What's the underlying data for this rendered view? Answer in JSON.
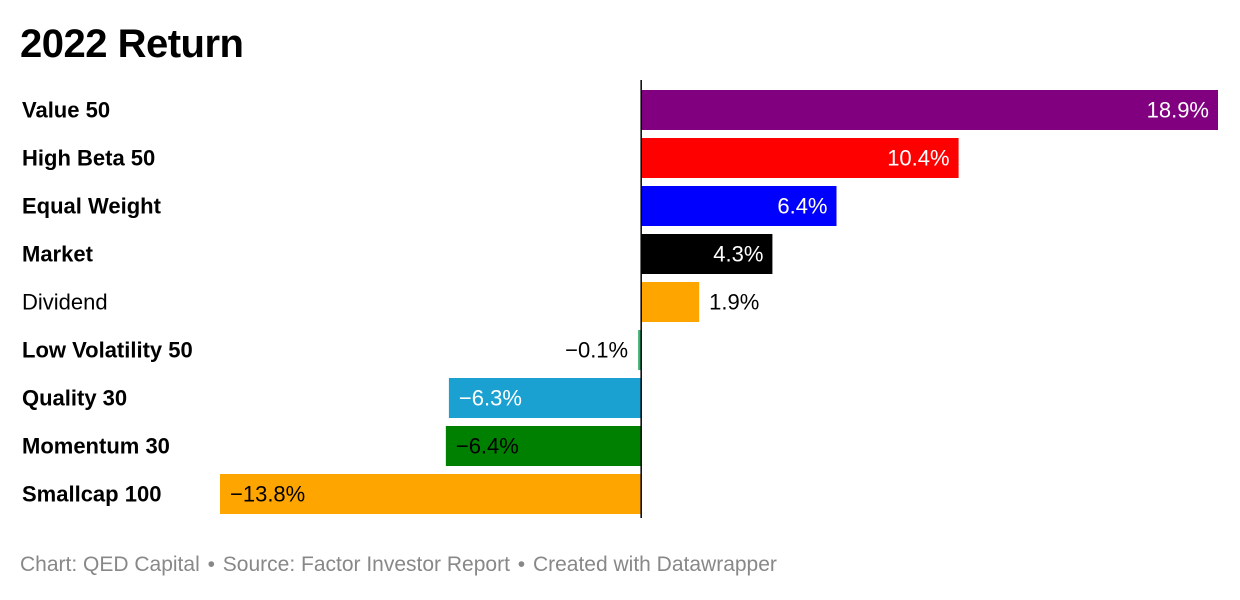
{
  "title": "2022 Return",
  "footer": {
    "chart": "Chart: QED Capital",
    "source": "Source: Factor Investor Report",
    "tool": "Created with Datawrapper",
    "separator": "•"
  },
  "chart_data": {
    "type": "bar",
    "orientation": "horizontal",
    "title": "2022 Return",
    "unit": "%",
    "xlim": [
      -13.8,
      18.9
    ],
    "grid": false,
    "legend": "none",
    "categories": [
      "Value 50",
      "High Beta 50",
      "Equal Weight",
      "Market",
      "Dividend",
      "Low Volatility 50",
      "Quality 30",
      "Momentum 30",
      "Smallcap 100"
    ],
    "values": [
      18.9,
      10.4,
      6.4,
      4.3,
      1.9,
      -0.1,
      -6.3,
      -6.4,
      -13.8
    ],
    "value_labels": [
      "18.9%",
      "10.4%",
      "6.4%",
      "4.3%",
      "1.9%",
      "−0.1%",
      "−6.3%",
      "−6.4%",
      "−13.8%"
    ],
    "colors": [
      "#800080",
      "#ff0000",
      "#0000ff",
      "#000000",
      "#ffa500",
      "#3cb371",
      "#1ba1d1",
      "#008000",
      "#ffa500"
    ],
    "label_bold": [
      true,
      true,
      true,
      true,
      false,
      true,
      true,
      true,
      true
    ],
    "label_inside": [
      true,
      true,
      true,
      true,
      false,
      false,
      true,
      true,
      true
    ],
    "label_text_colors": [
      "#ffffff",
      "#ffffff",
      "#ffffff",
      "#ffffff",
      "#000000",
      "#000000",
      "#ffffff",
      "#000000",
      "#000000"
    ]
  }
}
